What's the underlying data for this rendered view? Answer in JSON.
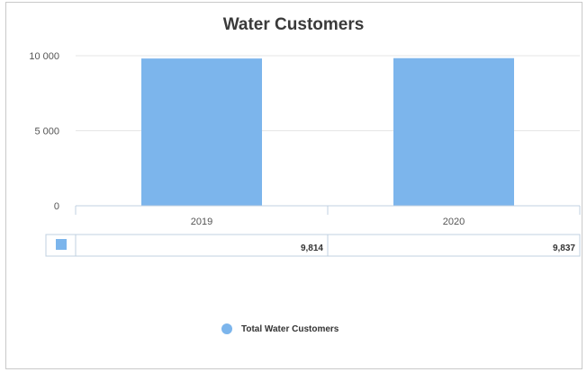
{
  "chart_data": {
    "type": "bar",
    "title": "Water Customers",
    "categories": [
      "2019",
      "2020"
    ],
    "series": [
      {
        "name": "Total Water Customers",
        "values": [
          9814,
          9837
        ]
      }
    ],
    "value_labels": [
      "9,814",
      "9,837"
    ],
    "yticks": [
      "0",
      "5 000",
      "10 000"
    ],
    "ytick_values": [
      0,
      5000,
      10000
    ],
    "ylim": [
      0,
      10000
    ],
    "xlabel": "",
    "ylabel": "",
    "grid": true,
    "legend_position": "bottom-center",
    "data_table": true
  },
  "colors": {
    "series": "#7cb5ec",
    "grid": "#e6e6e6",
    "axis": "#c0d0e0",
    "table_border": "#c0d0e0"
  }
}
